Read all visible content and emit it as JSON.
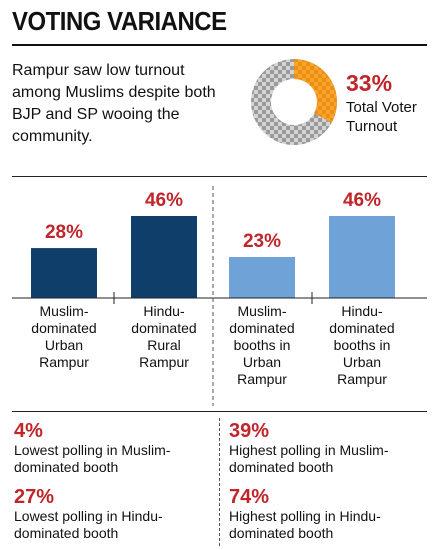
{
  "title": "VOTING VARIANCE",
  "intro": "Rampur saw low turnout among Muslims despite both BJP and SP wooing the community.",
  "turnout": {
    "value": "33%",
    "label": "Total Voter Turnout",
    "fraction": 0.33
  },
  "colors": {
    "dark_bar": "#0f3e6a",
    "light_bar": "#6fa2d6",
    "accent": "#c0252a",
    "donut_fill": "#f49a1c"
  },
  "chart_data": {
    "type": "bar",
    "categories": [
      "Muslim- dominated Urban Rampur",
      "Hindu- dominated Rural Rampur",
      "Muslim- dominated booths in Urban Rampur",
      "Hindu- dominated booths in Urban Rampur"
    ],
    "values": [
      28,
      46,
      23,
      46
    ],
    "value_labels": [
      "28%",
      "46%",
      "23%",
      "46%"
    ],
    "category_lines": [
      [
        "Muslim-",
        "dominated",
        "Urban",
        "Rampur"
      ],
      [
        "Hindu-",
        "dominated",
        "Rural",
        "Rampur"
      ],
      [
        "Muslim-",
        "dominated",
        "booths in",
        "Urban",
        "Rampur"
      ],
      [
        "Hindu-",
        "dominated",
        "booths in",
        "Urban",
        "Rampur"
      ]
    ],
    "bar_colors": [
      "#0f3e6a",
      "#0f3e6a",
      "#6fa2d6",
      "#6fa2d6"
    ],
    "ylim": [
      0,
      46
    ],
    "grid": false
  },
  "stats": [
    {
      "value": "4%",
      "label": "Lowest polling in Muslim-dominated booth"
    },
    {
      "value": "39%",
      "label": "Highest polling in Muslim-dominated booth"
    },
    {
      "value": "27%",
      "label": "Lowest polling in Hindu-dominated booth"
    },
    {
      "value": "74%",
      "label": "Highest polling in Hindu-dominated booth"
    }
  ]
}
